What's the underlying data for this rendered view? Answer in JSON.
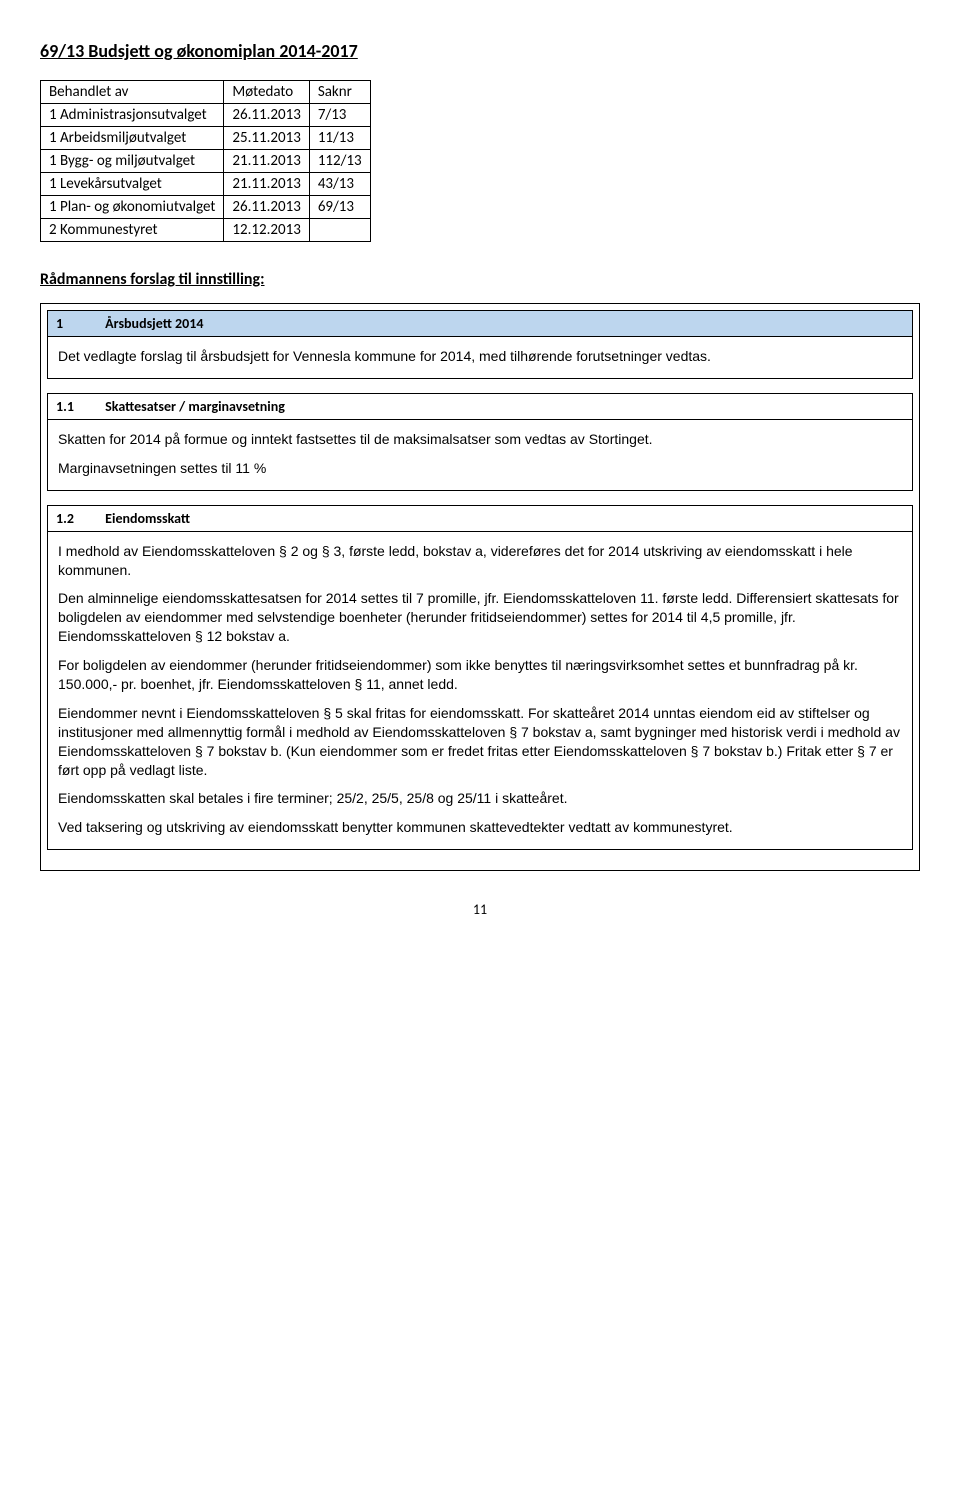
{
  "title": "69/13 Budsjett og økonomiplan 2014-2017",
  "meeting_table": {
    "headers": [
      "Behandlet av",
      "Møtedato",
      "Saknr"
    ],
    "rows": [
      [
        "1 Administrasjonsutvalget",
        "26.11.2013",
        "7/13"
      ],
      [
        "1 Arbeidsmiljøutvalget",
        "25.11.2013",
        "11/13"
      ],
      [
        "1 Bygg- og miljøutvalget",
        "21.11.2013",
        "112/13"
      ],
      [
        "1 Levekårsutvalget",
        "21.11.2013",
        "43/13"
      ],
      [
        "1 Plan- og økonomiutvalget",
        "26.11.2013",
        "69/13"
      ],
      [
        "2 Kommunestyret",
        "12.12.2013",
        ""
      ]
    ]
  },
  "subheading": "Rådmannens forslag til innstilling:",
  "sections": [
    {
      "num": "1",
      "label": "Årsbudsjett 2014",
      "highlight": true,
      "paragraphs": [
        "Det vedlagte forslag til årsbudsjett for Vennesla kommune for 2014, med tilhørende forutsetninger vedtas."
      ]
    },
    {
      "num": "1.1",
      "label": "Skattesatser / marginavsetning",
      "highlight": false,
      "paragraphs": [
        "Skatten for 2014 på formue og inntekt fastsettes til de maksimalsatser som vedtas av Stortinget.",
        "Marginavsetningen settes til 11 %"
      ]
    },
    {
      "num": "1.2",
      "label": "Eiendomsskatt",
      "highlight": false,
      "paragraphs": [
        "I medhold av Eiendomsskatteloven § 2 og § 3, første ledd, bokstav a, videreføres det for 2014 utskriving av eiendomsskatt i hele kommunen.",
        "Den alminnelige eiendomsskattesatsen for 2014 settes til 7 promille, jfr. Eiendomsskatteloven 11. første ledd. Differensiert skattesats for boligdelen av eiendommer med selvstendige boenheter (herunder fritidseiendommer) settes for 2014 til 4,5 promille, jfr. Eiendomsskatteloven § 12 bokstav a.",
        "For boligdelen av eiendommer (herunder fritidseiendommer) som ikke benyttes til næringsvirksomhet settes et bunnfradrag på kr. 150.000,- pr. boenhet, jfr. Eiendomsskatteloven § 11, annet ledd.",
        "Eiendommer nevnt i Eiendomsskatteloven § 5 skal fritas for eiendomsskatt. For skatteåret 2014 unntas eiendom eid av stiftelser og institusjoner med allmennyttig formål i medhold av Eiendomsskatteloven § 7 bokstav a, samt bygninger med historisk verdi i medhold av Eiendomsskatteloven § 7 bokstav b. (Kun eiendommer som er fredet fritas etter Eiendomsskatteloven § 7 bokstav b.) Fritak etter § 7 er ført opp på vedlagt liste.",
        "Eiendomsskatten skal betales i fire terminer; 25/2, 25/5, 25/8 og 25/11 i skatteåret.",
        "Ved taksering og utskriving av eiendomsskatt benytter kommunen skattevedtekter vedtatt av kommunestyret."
      ]
    }
  ],
  "page_number": "11",
  "colors": {
    "highlight_bg": "#bdd6ee",
    "border": "#000000",
    "text": "#000000",
    "background": "#ffffff"
  }
}
